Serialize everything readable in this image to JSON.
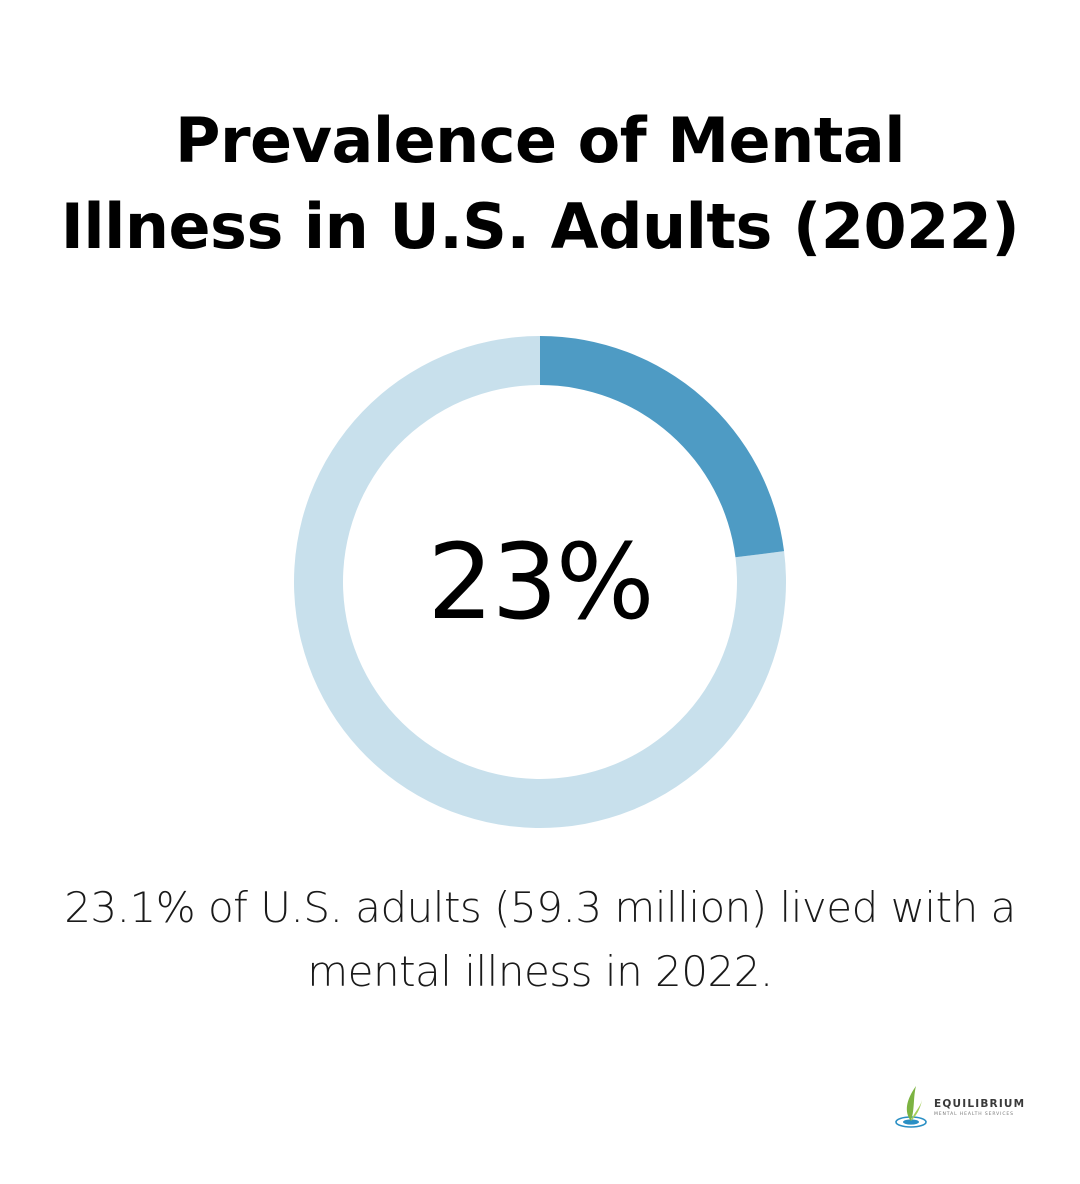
{
  "title_line1": "Prevalence of Mental",
  "title_line2": "Illness in U.S. Adults (2022)",
  "chart_data": {
    "type": "pie",
    "title": "Prevalence of Mental Illness in U.S. Adults (2022)",
    "center_label": "23%",
    "slices": [
      {
        "value": 23
      },
      {
        "value": 77
      }
    ],
    "colors": {
      "highlight": "#4e9bc4",
      "remainder": "#c8e0ec"
    }
  },
  "description_line1": "23.1% of U.S. adults (59.3 million) lived with a",
  "description_line2": "mental illness in 2022.",
  "logo": {
    "name": "EQUILIBRIUM",
    "tagline": "MENTAL HEALTH SERVICES",
    "icon": "leaf-droplet-icon",
    "colors": {
      "leaf": "#7cb342",
      "water": "#2a8fc4"
    }
  }
}
